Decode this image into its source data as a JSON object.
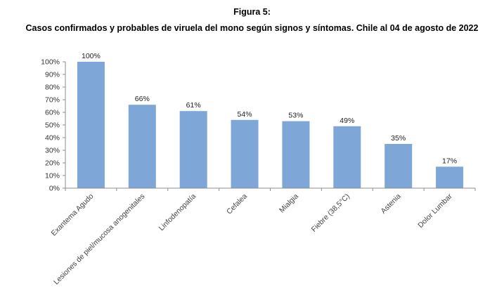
{
  "figure": {
    "label": "Figura 5:",
    "title": "Casos confirmados y probables de viruela del mono según signos y síntomas. Chile al 04 de agosto de 2022"
  },
  "chart_data": {
    "type": "bar",
    "categories": [
      "Exantema Agudo",
      "Lesiones de piel/mucosa anogenitales",
      "Linfodenopatía",
      "Cefalea",
      "Mialgia",
      "Fiebre (38,5°C)",
      "Astenia",
      "Dolor Lumbar"
    ],
    "values": [
      100,
      66,
      61,
      54,
      53,
      49,
      35,
      17
    ],
    "data_labels": [
      "100%",
      "66%",
      "61%",
      "54%",
      "53%",
      "49%",
      "35%",
      "17%"
    ],
    "y_ticks": [
      "0%",
      "10%",
      "20%",
      "30%",
      "40%",
      "50%",
      "60%",
      "70%",
      "80%",
      "90%",
      "100%"
    ],
    "ylim": [
      0,
      100
    ],
    "grid": false,
    "legend": "none",
    "bar_color": "#7ea7d8"
  }
}
